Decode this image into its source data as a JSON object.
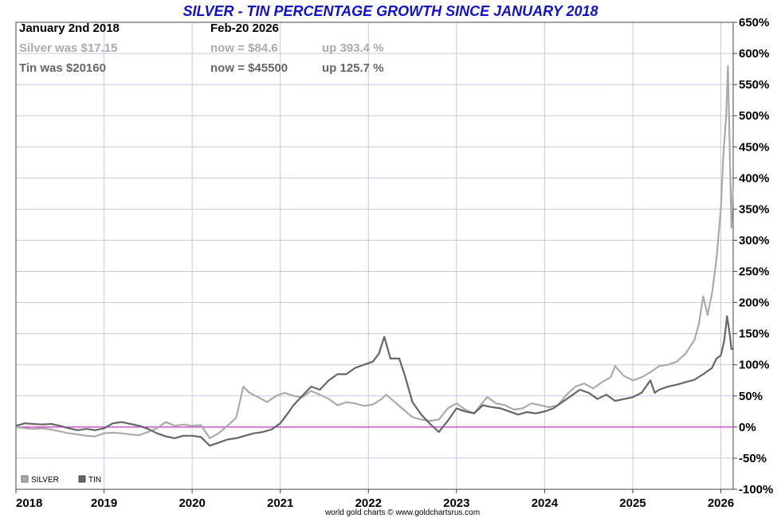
{
  "chart_data": {
    "type": "line",
    "title": "SILVER - TIN PERCENTAGE GROWTH SINCE JANUARY 2018",
    "info": {
      "start_label": "January 2nd 2018",
      "end_label": "Feb-20  2026",
      "silver_was": "Silver was $17.15",
      "silver_now": "now = $84.6",
      "silver_up": "up 393.4 %",
      "tin_was": "Tin was $20160",
      "tin_now": "now = $45500",
      "tin_up": "up 125.7 %"
    },
    "xlim": [
      2018.0,
      2026.14
    ],
    "ylim": [
      -100,
      650
    ],
    "x_ticks": [
      2018,
      2019,
      2020,
      2021,
      2022,
      2023,
      2024,
      2025,
      2026
    ],
    "x_tick_labels": [
      "2018",
      "2019",
      "2020",
      "2021",
      "2022",
      "2023",
      "2024",
      "2025",
      "2026"
    ],
    "y_ticks": [
      -100,
      -50,
      0,
      50,
      100,
      150,
      200,
      250,
      300,
      350,
      400,
      450,
      500,
      550,
      600,
      650
    ],
    "y_tick_labels": [
      "-100%",
      "-50%",
      "0%",
      "50%",
      "100%",
      "150%",
      "200%",
      "250%",
      "300%",
      "350%",
      "400%",
      "450%",
      "500%",
      "550%",
      "600%",
      "650%"
    ],
    "credit": "world gold charts © www.goldchartsrus.com",
    "legend": [
      "SILVER",
      "TIN"
    ],
    "colors": {
      "silver": "#aaaaaa",
      "tin": "#666666",
      "zero_line": "#cc33cc",
      "grid": "#c8c8e0",
      "title": "#1010d0"
    },
    "series": [
      {
        "name": "SILVER",
        "points": [
          [
            2018.0,
            0
          ],
          [
            2018.1,
            -2
          ],
          [
            2018.2,
            -3
          ],
          [
            2018.3,
            -2
          ],
          [
            2018.4,
            -4
          ],
          [
            2018.5,
            -7
          ],
          [
            2018.6,
            -10
          ],
          [
            2018.7,
            -12
          ],
          [
            2018.8,
            -14
          ],
          [
            2018.9,
            -15
          ],
          [
            2019.0,
            -10
          ],
          [
            2019.1,
            -9
          ],
          [
            2019.2,
            -10
          ],
          [
            2019.3,
            -12
          ],
          [
            2019.4,
            -13
          ],
          [
            2019.5,
            -8
          ],
          [
            2019.6,
            -2
          ],
          [
            2019.7,
            8
          ],
          [
            2019.8,
            2
          ],
          [
            2019.9,
            4
          ],
          [
            2020.0,
            2
          ],
          [
            2020.1,
            3
          ],
          [
            2020.2,
            -18
          ],
          [
            2020.3,
            -10
          ],
          [
            2020.4,
            2
          ],
          [
            2020.5,
            15
          ],
          [
            2020.58,
            65
          ],
          [
            2020.65,
            55
          ],
          [
            2020.75,
            48
          ],
          [
            2020.85,
            40
          ],
          [
            2020.95,
            50
          ],
          [
            2021.05,
            55
          ],
          [
            2021.15,
            50
          ],
          [
            2021.25,
            48
          ],
          [
            2021.35,
            58
          ],
          [
            2021.45,
            52
          ],
          [
            2021.55,
            45
          ],
          [
            2021.65,
            35
          ],
          [
            2021.75,
            40
          ],
          [
            2021.85,
            38
          ],
          [
            2021.95,
            34
          ],
          [
            2022.05,
            36
          ],
          [
            2022.15,
            45
          ],
          [
            2022.2,
            52
          ],
          [
            2022.3,
            40
          ],
          [
            2022.4,
            28
          ],
          [
            2022.5,
            16
          ],
          [
            2022.6,
            12
          ],
          [
            2022.7,
            10
          ],
          [
            2022.8,
            12
          ],
          [
            2022.9,
            30
          ],
          [
            2023.0,
            38
          ],
          [
            2023.1,
            28
          ],
          [
            2023.2,
            22
          ],
          [
            2023.3,
            40
          ],
          [
            2023.35,
            48
          ],
          [
            2023.45,
            38
          ],
          [
            2023.55,
            35
          ],
          [
            2023.65,
            28
          ],
          [
            2023.75,
            30
          ],
          [
            2023.85,
            38
          ],
          [
            2023.95,
            35
          ],
          [
            2024.05,
            32
          ],
          [
            2024.15,
            35
          ],
          [
            2024.25,
            52
          ],
          [
            2024.35,
            65
          ],
          [
            2024.45,
            70
          ],
          [
            2024.55,
            62
          ],
          [
            2024.65,
            72
          ],
          [
            2024.75,
            80
          ],
          [
            2024.8,
            98
          ],
          [
            2024.9,
            82
          ],
          [
            2025.0,
            75
          ],
          [
            2025.1,
            80
          ],
          [
            2025.2,
            88
          ],
          [
            2025.3,
            98
          ],
          [
            2025.4,
            100
          ],
          [
            2025.5,
            105
          ],
          [
            2025.6,
            118
          ],
          [
            2025.7,
            140
          ],
          [
            2025.75,
            165
          ],
          [
            2025.8,
            210
          ],
          [
            2025.85,
            180
          ],
          [
            2025.9,
            215
          ],
          [
            2025.95,
            270
          ],
          [
            2026.0,
            350
          ],
          [
            2026.03,
            440
          ],
          [
            2026.06,
            500
          ],
          [
            2026.08,
            580
          ],
          [
            2026.1,
            450
          ],
          [
            2026.12,
            320
          ],
          [
            2026.14,
            393
          ]
        ]
      },
      {
        "name": "TIN",
        "points": [
          [
            2018.0,
            2
          ],
          [
            2018.1,
            6
          ],
          [
            2018.2,
            5
          ],
          [
            2018.3,
            4
          ],
          [
            2018.4,
            5
          ],
          [
            2018.5,
            2
          ],
          [
            2018.6,
            -2
          ],
          [
            2018.7,
            -5
          ],
          [
            2018.8,
            -3
          ],
          [
            2018.9,
            -5
          ],
          [
            2019.0,
            -2
          ],
          [
            2019.1,
            6
          ],
          [
            2019.2,
            8
          ],
          [
            2019.3,
            5
          ],
          [
            2019.4,
            2
          ],
          [
            2019.5,
            -3
          ],
          [
            2019.6,
            -10
          ],
          [
            2019.7,
            -15
          ],
          [
            2019.8,
            -18
          ],
          [
            2019.9,
            -14
          ],
          [
            2020.0,
            -14
          ],
          [
            2020.1,
            -16
          ],
          [
            2020.2,
            -30
          ],
          [
            2020.3,
            -25
          ],
          [
            2020.4,
            -20
          ],
          [
            2020.5,
            -18
          ],
          [
            2020.6,
            -14
          ],
          [
            2020.7,
            -10
          ],
          [
            2020.8,
            -8
          ],
          [
            2020.9,
            -4
          ],
          [
            2021.0,
            6
          ],
          [
            2021.1,
            25
          ],
          [
            2021.15,
            35
          ],
          [
            2021.25,
            50
          ],
          [
            2021.35,
            65
          ],
          [
            2021.45,
            60
          ],
          [
            2021.55,
            75
          ],
          [
            2021.65,
            85
          ],
          [
            2021.75,
            85
          ],
          [
            2021.85,
            95
          ],
          [
            2021.95,
            100
          ],
          [
            2022.05,
            105
          ],
          [
            2022.12,
            118
          ],
          [
            2022.18,
            145
          ],
          [
            2022.25,
            110
          ],
          [
            2022.35,
            110
          ],
          [
            2022.42,
            80
          ],
          [
            2022.5,
            40
          ],
          [
            2022.6,
            20
          ],
          [
            2022.7,
            5
          ],
          [
            2022.8,
            -8
          ],
          [
            2022.9,
            10
          ],
          [
            2023.0,
            30
          ],
          [
            2023.1,
            25
          ],
          [
            2023.2,
            22
          ],
          [
            2023.3,
            35
          ],
          [
            2023.4,
            32
          ],
          [
            2023.5,
            30
          ],
          [
            2023.6,
            25
          ],
          [
            2023.7,
            20
          ],
          [
            2023.8,
            24
          ],
          [
            2023.9,
            22
          ],
          [
            2024.0,
            25
          ],
          [
            2024.1,
            30
          ],
          [
            2024.2,
            40
          ],
          [
            2024.3,
            50
          ],
          [
            2024.4,
            60
          ],
          [
            2024.5,
            55
          ],
          [
            2024.6,
            45
          ],
          [
            2024.7,
            52
          ],
          [
            2024.8,
            42
          ],
          [
            2024.9,
            45
          ],
          [
            2025.0,
            48
          ],
          [
            2025.1,
            55
          ],
          [
            2025.2,
            75
          ],
          [
            2025.25,
            55
          ],
          [
            2025.3,
            60
          ],
          [
            2025.4,
            65
          ],
          [
            2025.5,
            68
          ],
          [
            2025.6,
            72
          ],
          [
            2025.7,
            76
          ],
          [
            2025.8,
            85
          ],
          [
            2025.9,
            95
          ],
          [
            2025.95,
            110
          ],
          [
            2026.0,
            115
          ],
          [
            2026.04,
            140
          ],
          [
            2026.07,
            178
          ],
          [
            2026.1,
            150
          ],
          [
            2026.12,
            125
          ],
          [
            2026.14,
            126
          ]
        ]
      }
    ]
  }
}
